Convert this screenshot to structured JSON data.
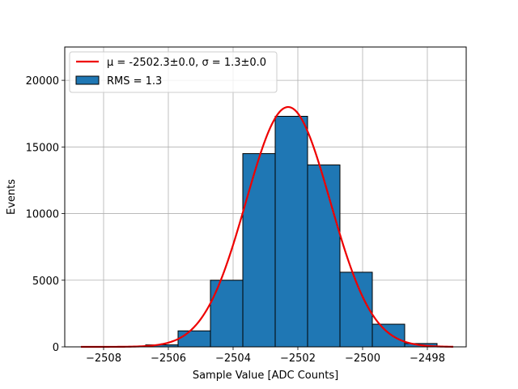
{
  "chart_data": {
    "type": "bar",
    "title": "",
    "xlabel": "Sample Value [ADC Counts]",
    "ylabel": "Events",
    "xlim": [
      -2509.2,
      -2496.8
    ],
    "ylim": [
      0,
      22500
    ],
    "xticks": [
      -2508,
      -2506,
      -2504,
      -2502,
      -2500,
      -2498
    ],
    "xtick_labels": [
      "−2508",
      "−2506",
      "−2504",
      "−2502",
      "−2500",
      "−2498"
    ],
    "yticks": [
      0,
      5000,
      10000,
      15000,
      20000
    ],
    "ytick_labels": [
      "0",
      "5000",
      "10000",
      "15000",
      "20000"
    ],
    "grid": true,
    "legend_position": "top-left",
    "histogram": {
      "name": "RMS = 1.3",
      "color": "#1f77b4",
      "edgecolor": "#000000",
      "bins": [
        {
          "x0": -2508.7,
          "x1": -2507.7,
          "count": 0
        },
        {
          "x0": -2507.7,
          "x1": -2506.7,
          "count": 10
        },
        {
          "x0": -2506.7,
          "x1": -2505.7,
          "count": 150
        },
        {
          "x0": -2505.7,
          "x1": -2504.7,
          "count": 1200
        },
        {
          "x0": -2504.7,
          "x1": -2503.7,
          "count": 5000
        },
        {
          "x0": -2503.7,
          "x1": -2502.7,
          "count": 14500
        },
        {
          "x0": -2502.7,
          "x1": -2501.7,
          "count": 17300
        },
        {
          "x0": -2501.7,
          "x1": -2500.7,
          "count": 13650
        },
        {
          "x0": -2500.7,
          "x1": -2499.7,
          "count": 5600
        },
        {
          "x0": -2499.7,
          "x1": -2498.7,
          "count": 1700
        },
        {
          "x0": -2498.7,
          "x1": -2497.7,
          "count": 250
        }
      ]
    },
    "fit": {
      "name": "μ = -2502.3±0.0, σ = 1.3±0.0",
      "color": "#ee0000",
      "mu": -2502.3,
      "sigma": 1.3,
      "amplitude": 18000,
      "x_range": [
        -2508.7,
        -2497.2
      ]
    }
  }
}
